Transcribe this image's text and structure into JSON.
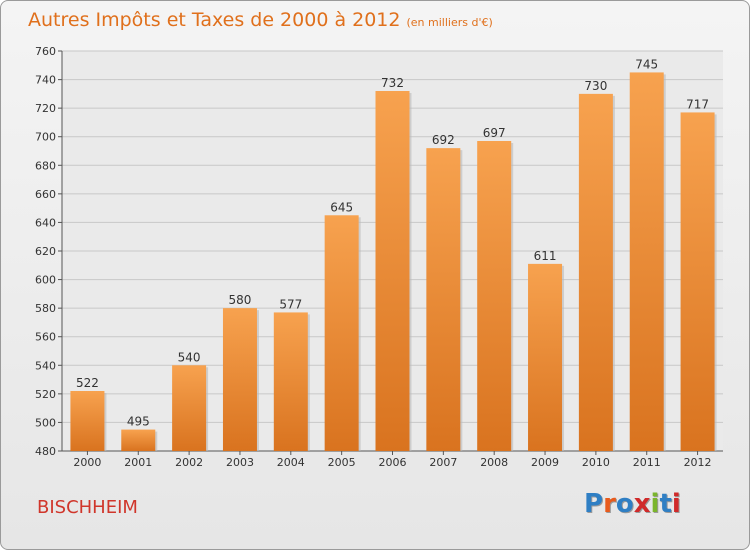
{
  "header": {
    "title": "Autres Impôts et Taxes de 2000 à 2012",
    "subtitle": "(en milliers d'€)"
  },
  "footer": {
    "city": "BISCHHEIM",
    "logo_letters": [
      "P",
      "r",
      "o",
      "x",
      "i",
      "t",
      "i"
    ],
    "logo_colors": [
      "#2f7fc4",
      "#e85b1c",
      "#2f7fc4",
      "#d02a2a",
      "#7bb52c",
      "#2f7fc4",
      "#d02a2a"
    ]
  },
  "colors": {
    "bar_light": "#f7a24f",
    "bar_dark": "#d9731f",
    "title": "#e0701c",
    "city": "#d0362b"
  },
  "chart_data": {
    "type": "bar",
    "categories": [
      "2000",
      "2001",
      "2002",
      "2003",
      "2004",
      "2005",
      "2006",
      "2007",
      "2008",
      "2009",
      "2010",
      "2011",
      "2012"
    ],
    "values": [
      522,
      495,
      540,
      580,
      577,
      645,
      732,
      692,
      697,
      611,
      730,
      745,
      717
    ],
    "title": "Autres Impôts et Taxes de 2000 à 2012",
    "ylim": [
      480,
      760
    ],
    "yticks": [
      480,
      500,
      520,
      540,
      560,
      580,
      600,
      620,
      640,
      660,
      680,
      700,
      720,
      740,
      760
    ],
    "grid": true
  }
}
